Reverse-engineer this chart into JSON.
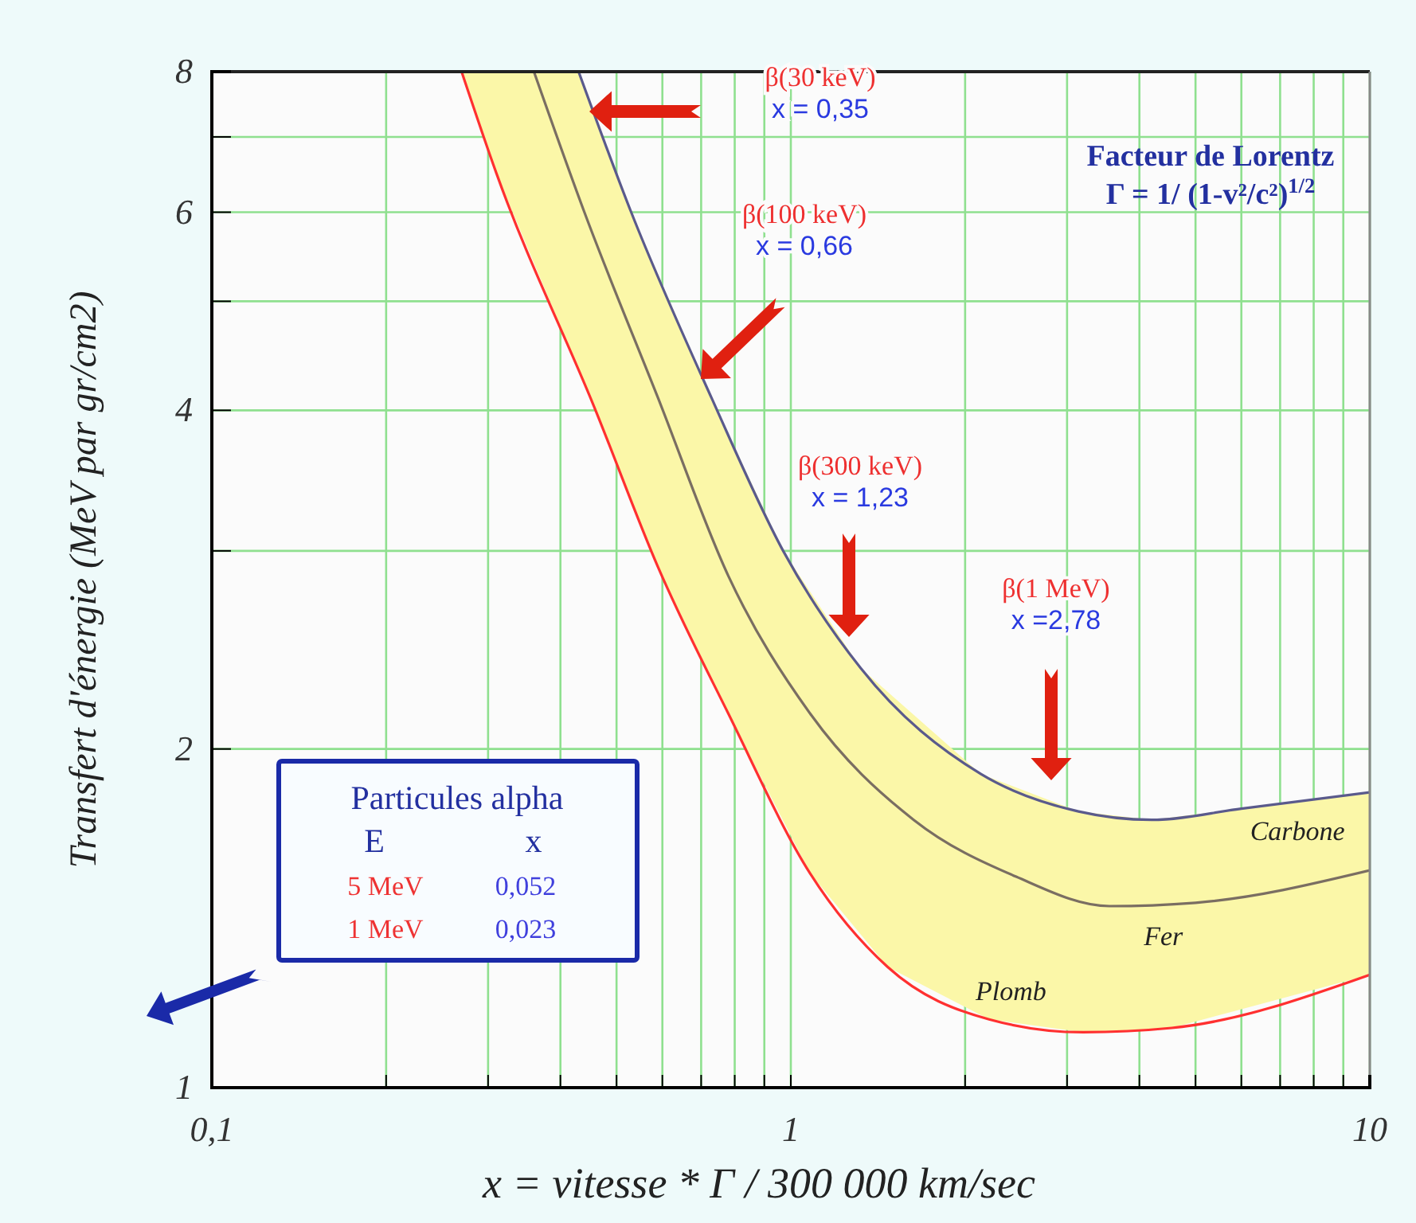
{
  "chart_data": {
    "type": "line",
    "xlabel": "x = vitesse * Γ / 300 000 km/sec",
    "ylabel": "Transfert d'énergie  (MeV par gr/cm2)",
    "log": "xy",
    "xlim": [
      0.1,
      10
    ],
    "ylim": [
      1,
      8
    ],
    "xticks": [
      {
        "value": 0.1,
        "label": "0,1"
      },
      {
        "value": 0.2,
        "label": null
      },
      {
        "value": 0.3,
        "label": null
      },
      {
        "value": 0.4,
        "label": null
      },
      {
        "value": 0.5,
        "label": null
      },
      {
        "value": 0.6,
        "label": null
      },
      {
        "value": 0.7,
        "label": null
      },
      {
        "value": 0.8,
        "label": null
      },
      {
        "value": 0.9,
        "label": null
      },
      1,
      {
        "value": 2,
        "label": null
      },
      {
        "value": 3,
        "label": null
      },
      {
        "value": 4,
        "label": null
      },
      {
        "value": 5,
        "label": null
      },
      {
        "value": 6,
        "label": null
      },
      {
        "value": 7,
        "label": null
      },
      {
        "value": 8,
        "label": null
      },
      {
        "value": 9,
        "label": null
      },
      10
    ],
    "yticks": [
      1,
      2,
      {
        "value": 3,
        "label": null
      },
      4,
      {
        "value": 5,
        "label": null
      },
      6,
      {
        "value": 7,
        "label": null
      },
      8
    ],
    "grid": true,
    "marker": "none",
    "line_style": "solid",
    "series": [
      {
        "name": "Carbone",
        "color": "#5a5a8c",
        "x": [
          0.43,
          0.53,
          0.73,
          0.97,
          1.32,
          2.13,
          3.14,
          4.2,
          6,
          10
        ],
        "values": [
          8,
          6,
          4.1,
          3,
          2.36,
          1.9,
          1.76,
          1.73,
          1.77,
          1.83
        ]
      },
      {
        "name": "Fer",
        "color": "#7a6e62",
        "x": [
          0.36,
          0.44,
          0.59,
          0.78,
          1.08,
          1.63,
          2.45,
          3.55,
          5,
          10
        ],
        "values": [
          8,
          6,
          4.1,
          2.85,
          2.15,
          1.73,
          1.54,
          1.45,
          1.46,
          1.56
        ]
      },
      {
        "name": "Plomb",
        "color": "#ff3030",
        "x": [
          0.27,
          0.31,
          0.46,
          0.59,
          0.78,
          1.08,
          1.47,
          2.2,
          3.2,
          4.55,
          10
        ],
        "values": [
          8,
          6.5,
          4,
          2.9,
          2.15,
          1.55,
          1.28,
          1.15,
          1.12,
          1.13,
          1.26
        ]
      }
    ],
    "annotations": [
      "β(30 keV)\nx = 0,35",
      "β(100 keV)\nx = 0,66",
      "β(300 keV)\nx = 1,23",
      "β(1 MeV)\nx =2,78",
      "Facteur de Lorentz",
      "Γ = 1/ (1-v²/c²)$^{1/2}$",
      "Particules alpha",
      "E",
      "x",
      "5 MeV",
      "0,052",
      "1 MeV",
      "0,023"
    ]
  }
}
